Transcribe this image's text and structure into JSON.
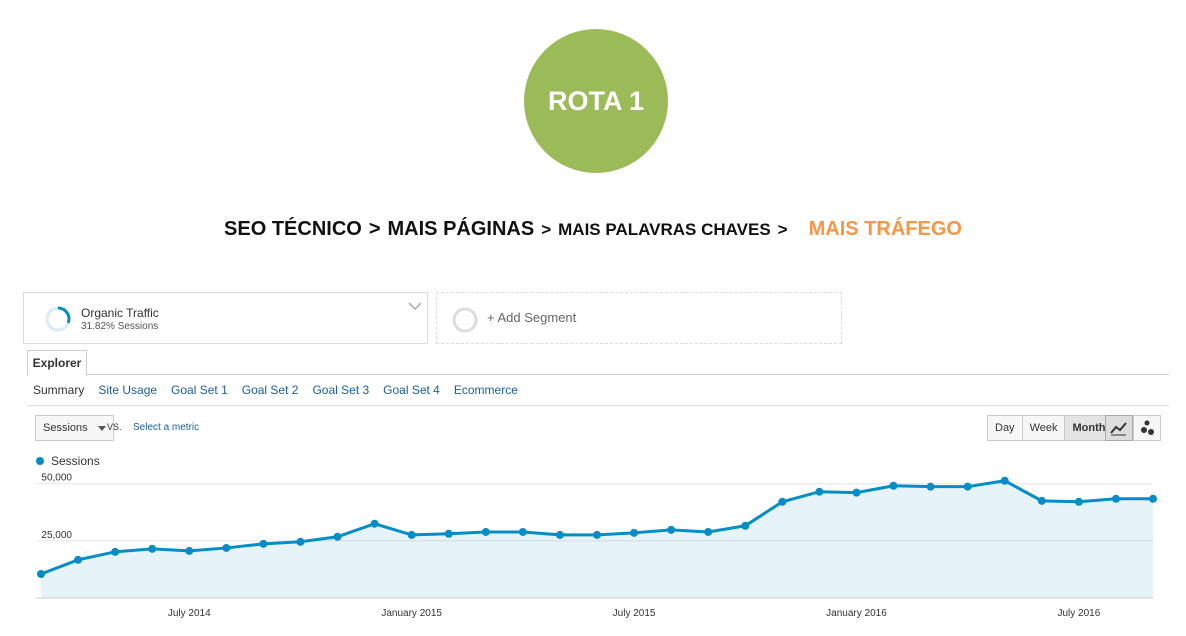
{
  "badge": "ROTA 1",
  "headline": {
    "steps": [
      "SEO TÉCNICO",
      "MAIS PÁGINAS",
      "MAIS PALAVRAS CHAVES",
      "MAIS TRÁFEGO"
    ],
    "separator": ">"
  },
  "segments": {
    "active": {
      "name": "Organic Traffic",
      "detail": "31.82% Sessions"
    },
    "add": "+ Add Segment"
  },
  "tab": "Explorer",
  "subtabs": [
    "Summary",
    "Site Usage",
    "Goal Set 1",
    "Goal Set 2",
    "Goal Set 3",
    "Goal Set 4",
    "Ecommerce"
  ],
  "controls": {
    "metric": "Sessions",
    "vs": "VS.",
    "select": "Select a metric",
    "periods": [
      "Day",
      "Week",
      "Month"
    ]
  },
  "chart_data": {
    "type": "area",
    "categories": [
      null,
      null,
      null,
      null,
      "July 2014",
      null,
      null,
      null,
      null,
      null,
      "January 2015",
      null,
      null,
      null,
      null,
      null,
      "July 2015",
      null,
      null,
      null,
      null,
      null,
      "January 2016",
      null,
      null,
      null,
      null,
      null,
      "July 2016",
      null,
      null
    ],
    "series": [
      {
        "name": "Sessions",
        "color": "#058dc7",
        "values": [
          10500,
          16700,
          20200,
          21500,
          20600,
          21900,
          23700,
          24600,
          26800,
          32500,
          27600,
          28100,
          28900,
          28900,
          27600,
          27600,
          28500,
          29800,
          28900,
          31600,
          42100,
          46500,
          46100,
          49100,
          48700,
          48700,
          51300,
          42500,
          42100,
          43400,
          43400
        ]
      }
    ],
    "ylim": [
      0,
      56000
    ],
    "yticks": [
      {
        "value": 25000,
        "label": "25,000"
      },
      {
        "value": 50000,
        "label": "50,000"
      }
    ],
    "grid": true
  }
}
